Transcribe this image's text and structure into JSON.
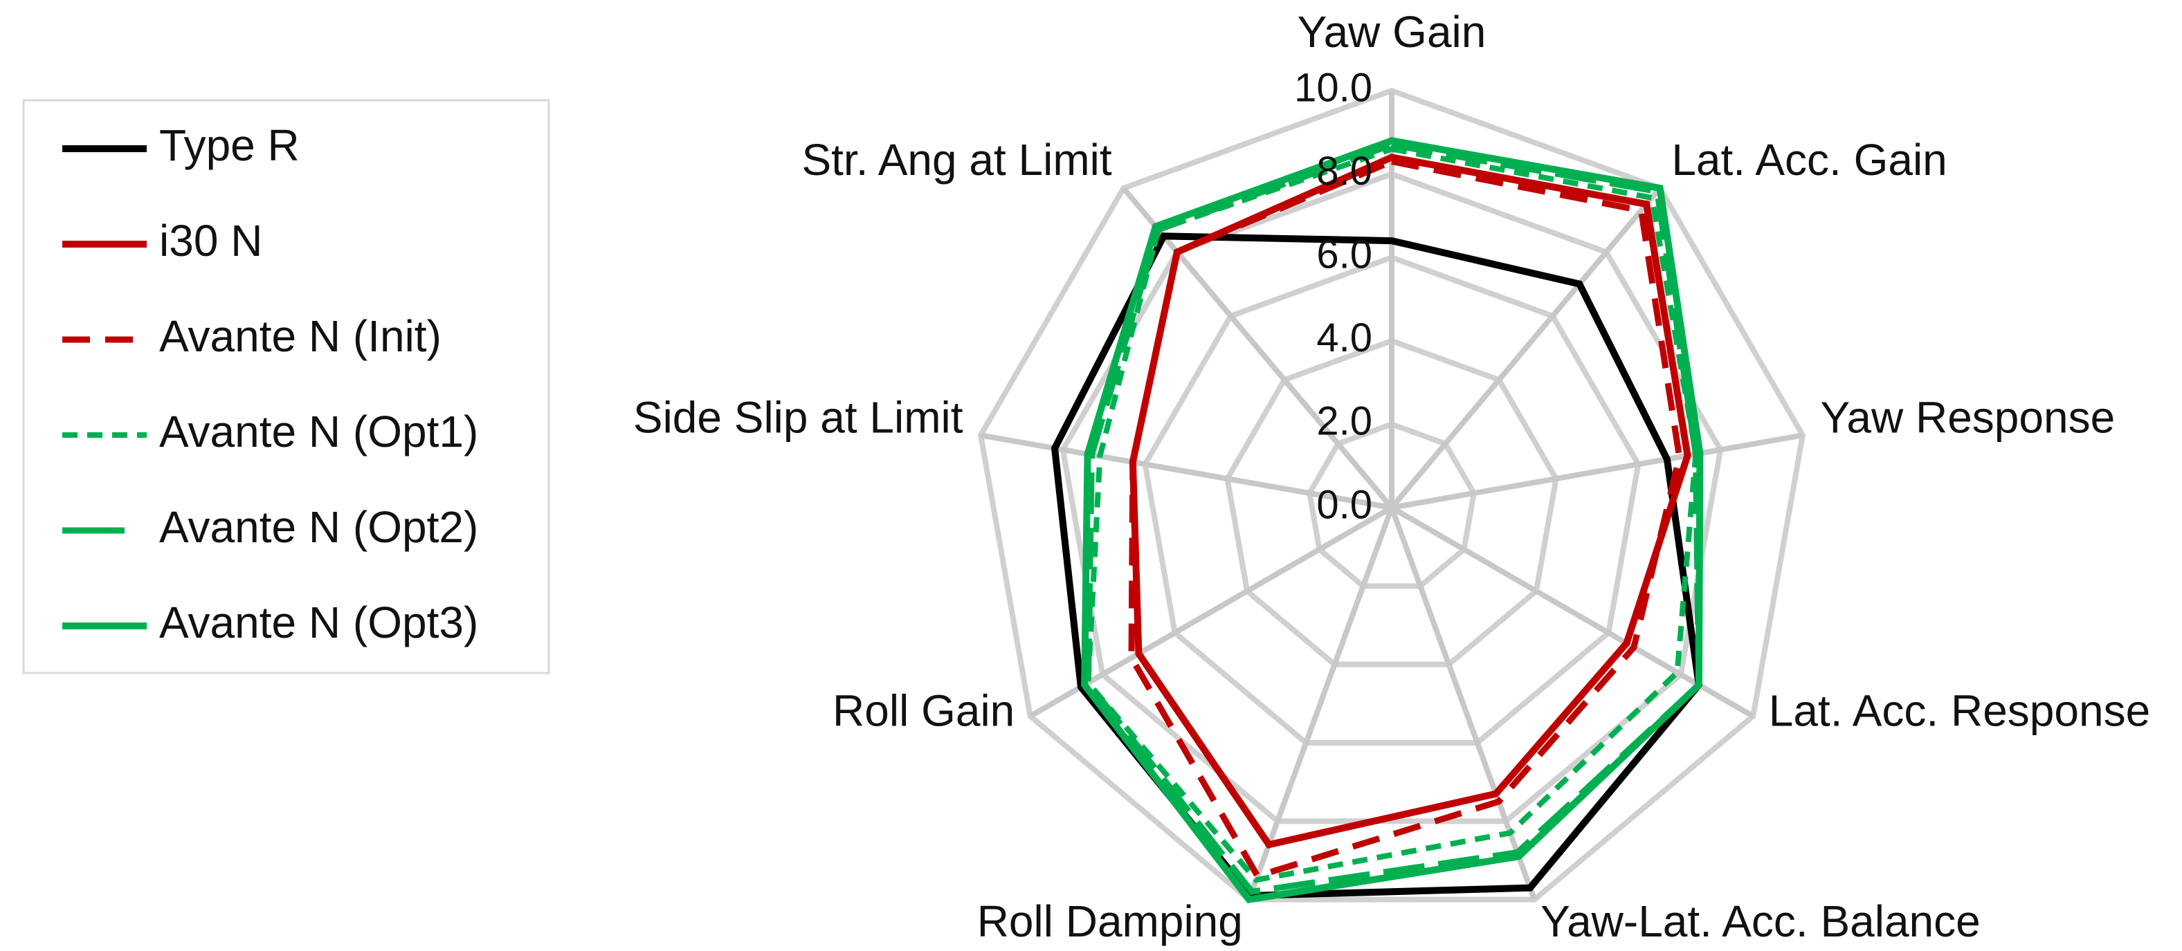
{
  "chart_data": {
    "type": "radar",
    "categories": [
      "Yaw Gain",
      "Lat. Acc. Gain",
      "Yaw Response",
      "Lat. Acc. Response",
      "Yaw-Lat. Acc. Balance",
      "Roll Damping",
      "Roll Gain",
      "Side Slip at Limit",
      "Str. Ang at Limit"
    ],
    "ylim": [
      0,
      10
    ],
    "yticks": [
      {
        "value": 0,
        "label": "0.0"
      },
      {
        "value": 2,
        "label": "2.0"
      },
      {
        "value": 4,
        "label": "4.0"
      },
      {
        "value": 6,
        "label": "6.0"
      },
      {
        "value": 8,
        "label": "8.0"
      },
      {
        "value": 10,
        "label": "10.0"
      }
    ],
    "grid": true,
    "legend": "left",
    "series": [
      {
        "name": "Type R",
        "color": "#000000",
        "linestyle": "solid",
        "values": [
          6.4,
          7.0,
          6.7,
          8.5,
          9.7,
          9.9,
          8.6,
          8.2,
          8.5
        ]
      },
      {
        "name": "i30 N",
        "color": "#c00000",
        "linestyle": "solid",
        "values": [
          8.4,
          9.5,
          7.2,
          6.5,
          7.3,
          8.6,
          7.0,
          6.3,
          8.0
        ]
      },
      {
        "name": "Avante N (Init)",
        "color": "#c00000",
        "linestyle": "dashed",
        "values": [
          8.3,
          9.3,
          7.0,
          6.7,
          7.5,
          9.4,
          7.2,
          6.3,
          8.0
        ]
      },
      {
        "name": "Avante N (Opt1)",
        "color": "#00b050",
        "linestyle": "dotted",
        "values": [
          8.6,
          9.7,
          7.4,
          7.9,
          8.3,
          9.5,
          8.4,
          7.1,
          8.7
        ]
      },
      {
        "name": "Avante N (Opt2)",
        "color": "#00b050",
        "linestyle": "long-dashed",
        "values": [
          8.7,
          9.9,
          7.4,
          8.5,
          8.8,
          9.8,
          8.4,
          7.3,
          8.7
        ]
      },
      {
        "name": "Avante N (Opt3)",
        "color": "#00b050",
        "linestyle": "solid",
        "values": [
          8.8,
          10.0,
          7.5,
          8.5,
          8.9,
          10.0,
          8.5,
          7.4,
          8.8
        ]
      }
    ]
  }
}
